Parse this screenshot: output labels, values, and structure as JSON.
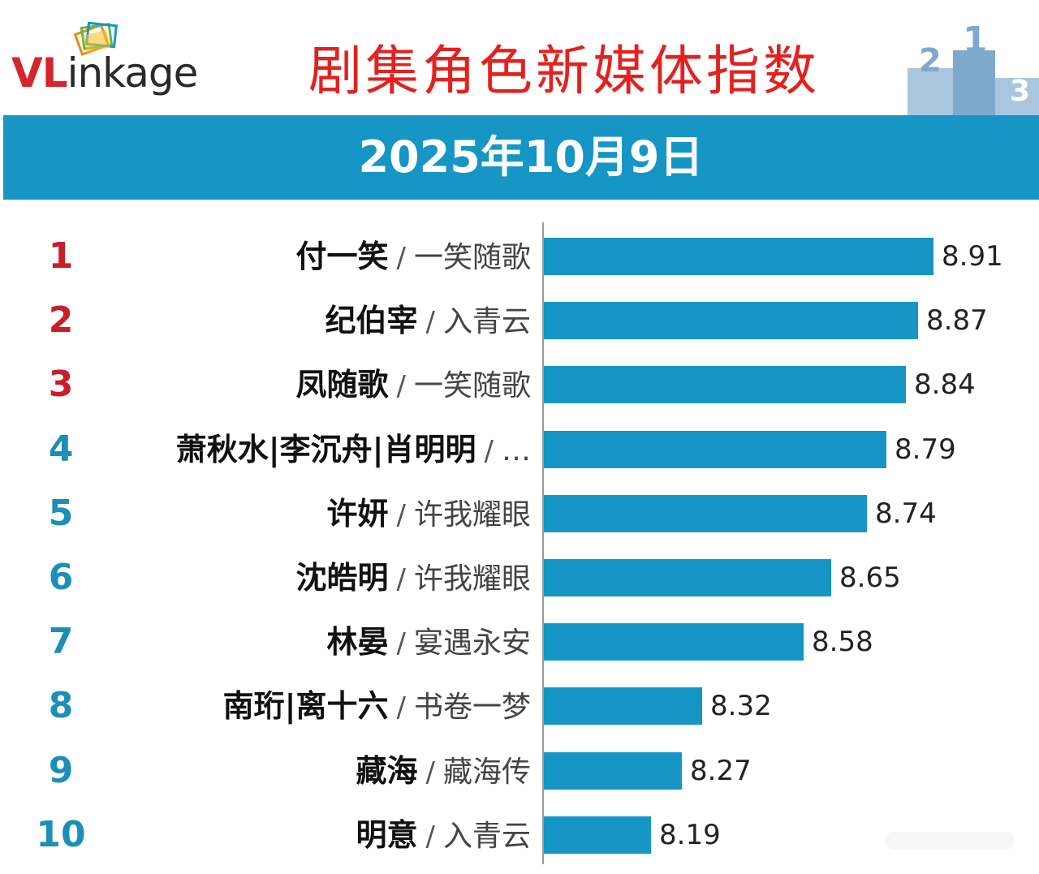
{
  "header": {
    "logo_text_highlight": "VL",
    "logo_text_rest": "inkage",
    "title": "剧集角色新媒体指数",
    "podium_numbers": [
      "2",
      "1",
      "3"
    ]
  },
  "date": "2025年10月9日",
  "colors": {
    "bar": "#1596c4",
    "band": "#1596c4",
    "title": "#e3211e",
    "rank_top": "#c81e2a",
    "rank_rest": "#1c8fb8"
  },
  "chart_data": {
    "type": "bar",
    "orientation": "horizontal",
    "title": "剧集角色新媒体指数",
    "subtitle": "2025年10月9日",
    "xlabel": "",
    "ylabel": "",
    "grid": false,
    "xlim": [
      0,
      8.91
    ],
    "items": [
      {
        "rank": "1",
        "name": "付一笑",
        "drama": "一笑随歌",
        "value": 8.91,
        "value_label": "8.91"
      },
      {
        "rank": "2",
        "name": "纪伯宰",
        "drama": "入青云",
        "value": 8.87,
        "value_label": "8.87"
      },
      {
        "rank": "3",
        "name": "凤随歌",
        "drama": "一笑随歌",
        "value": 8.84,
        "value_label": "8.84"
      },
      {
        "rank": "4",
        "name": "萧秋水|李沉舟|肖明明",
        "drama": "…",
        "value": 8.79,
        "value_label": "8.79"
      },
      {
        "rank": "5",
        "name": "许妍",
        "drama": "许我耀眼",
        "value": 8.74,
        "value_label": "8.74"
      },
      {
        "rank": "6",
        "name": "沈皓明",
        "drama": "许我耀眼",
        "value": 8.65,
        "value_label": "8.65"
      },
      {
        "rank": "7",
        "name": "林晏",
        "drama": "宴遇永安",
        "value": 8.58,
        "value_label": "8.58"
      },
      {
        "rank": "8",
        "name": "南珩|离十六",
        "drama": "书卷一梦",
        "value": 8.32,
        "value_label": "8.32"
      },
      {
        "rank": "9",
        "name": "藏海",
        "drama": "藏海传",
        "value": 8.27,
        "value_label": "8.27"
      },
      {
        "rank": "10",
        "name": "明意",
        "drama": "入青云",
        "value": 8.19,
        "value_label": "8.19"
      }
    ]
  }
}
